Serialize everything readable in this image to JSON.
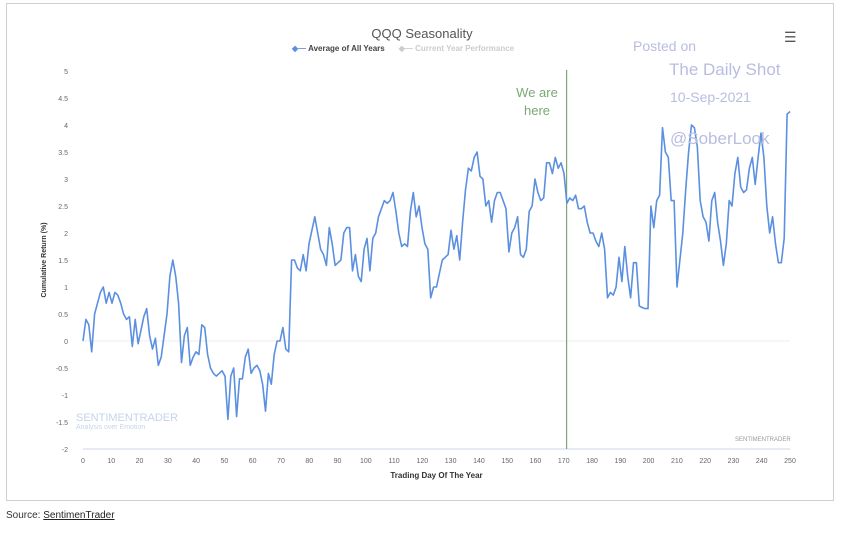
{
  "chart_data": {
    "type": "line",
    "title": "QQQ Seasonality",
    "xlabel": "Trading Day Of The Year",
    "ylabel": "Cumulative Return (%)",
    "xlim": [
      0,
      250
    ],
    "ylim": [
      -2,
      5
    ],
    "xticks": [
      "0",
      "10",
      "20",
      "30",
      "40",
      "50",
      "60",
      "70",
      "80",
      "90",
      "100",
      "110",
      "120",
      "130",
      "140",
      "150",
      "160",
      "170",
      "180",
      "190",
      "200",
      "210",
      "220",
      "230",
      "240",
      "250"
    ],
    "yticks": [
      "5",
      "4.5",
      "4",
      "3.5",
      "3",
      "2.5",
      "2",
      "1.5",
      "1",
      "0.5",
      "0",
      "-0.5",
      "-1",
      "-1.5",
      "-2"
    ],
    "legend": [
      "Average of All Years",
      "Current Year Performance"
    ],
    "marker_day": 171,
    "marker_label_1": "We are",
    "marker_label_2": "here",
    "series": [
      {
        "name": "Average of All Years",
        "color": "#5b8fe0",
        "values": [
          0,
          0.4,
          0.3,
          -0.2,
          0.5,
          0.7,
          0.9,
          1.0,
          0.7,
          0.9,
          0.7,
          0.9,
          0.85,
          0.7,
          0.5,
          0.4,
          0.45,
          -0.1,
          0.4,
          -0.05,
          0.2,
          0.45,
          0.6,
          0.1,
          -0.15,
          0.05,
          -0.45,
          -0.3,
          0.1,
          0.5,
          1.2,
          1.5,
          1.2,
          0.7,
          -0.4,
          0.1,
          0.25,
          -0.45,
          -0.3,
          -0.2,
          -0.25,
          0.3,
          0.25,
          -0.25,
          -0.5,
          -0.6,
          -0.65,
          -0.6,
          -0.55,
          -0.65,
          -1.45,
          -0.65,
          -0.5,
          -1.4,
          -0.7,
          -0.7,
          -0.3,
          -0.15,
          -0.6,
          -0.5,
          -0.45,
          -0.55,
          -0.8,
          -1.3,
          -0.6,
          -0.8,
          -0.25,
          0,
          0,
          0.25,
          -0.15,
          -0.2,
          1.5,
          1.5,
          1.35,
          1.3,
          1.6,
          1.3,
          1.8,
          2.05,
          2.3,
          2.0,
          1.7,
          1.6,
          1.4,
          2.1,
          1.8,
          1.4,
          1.45,
          1.5,
          2.0,
          2.1,
          2.1,
          1.3,
          1.6,
          1.2,
          1.1,
          1.7,
          1.9,
          1.3,
          1.9,
          2.0,
          2.3,
          2.45,
          2.6,
          2.55,
          2.6,
          2.75,
          2.4,
          2.0,
          1.75,
          1.8,
          1.75,
          2.4,
          2.75,
          2.3,
          2.5,
          2.1,
          1.8,
          1.7,
          0.8,
          1.0,
          1.0,
          1.25,
          1.5,
          1.55,
          1.6,
          2.05,
          1.7,
          1.95,
          1.5,
          2.2,
          2.8,
          3.2,
          3.15,
          3.4,
          3.5,
          3.05,
          3.0,
          2.5,
          2.6,
          2.2,
          2.6,
          2.75,
          2.75,
          2.6,
          2.45,
          1.65,
          2.0,
          2.1,
          2.3,
          1.6,
          1.55,
          1.7,
          2.4,
          2.5,
          3.0,
          2.75,
          2.6,
          2.65,
          3.3,
          3.3,
          3.1,
          3.4,
          3.2,
          3.3,
          3.1,
          2.55,
          2.65,
          2.6,
          2.7,
          2.45,
          2.45,
          2.5,
          2.2,
          2.0,
          2.0,
          1.85,
          1.75,
          2.0,
          1.7,
          0.8,
          0.9,
          0.85,
          1.0,
          1.55,
          1.1,
          1.75,
          1.2,
          0.8,
          1.45,
          1.45,
          0.65,
          0.62,
          0.6,
          0.6,
          2.5,
          2.1,
          2.6,
          2.7,
          3.95,
          3.5,
          3.4,
          2.6,
          2.6,
          1.0,
          1.5,
          2.0,
          2.8,
          3.5,
          4.0,
          3.95,
          3.6,
          2.6,
          2.3,
          2.2,
          1.85,
          2.6,
          2.75,
          2.2,
          1.85,
          1.4,
          1.8,
          2.6,
          2.5,
          3.1,
          3.4,
          2.85,
          2.75,
          2.8,
          3.2,
          3.4,
          2.9,
          3.4,
          3.85,
          3.4,
          2.5,
          2.0,
          2.3,
          1.8,
          1.45,
          1.45,
          1.9,
          4.2,
          4.25
        ]
      }
    ]
  },
  "ui": {
    "menu_icon": "hamburger-icon",
    "watermark_1": "Posted on",
    "watermark_2": "The Daily Shot",
    "watermark_3": "10-Sep-2021",
    "watermark_4": "@SoberLook",
    "logo_name": "SENTIMENTRADER",
    "logo_tagline": "Analysis over Emotion",
    "credit": "SENTIMENTRADER",
    "source_label": "Source:",
    "source_link": "SentimenTrader"
  }
}
